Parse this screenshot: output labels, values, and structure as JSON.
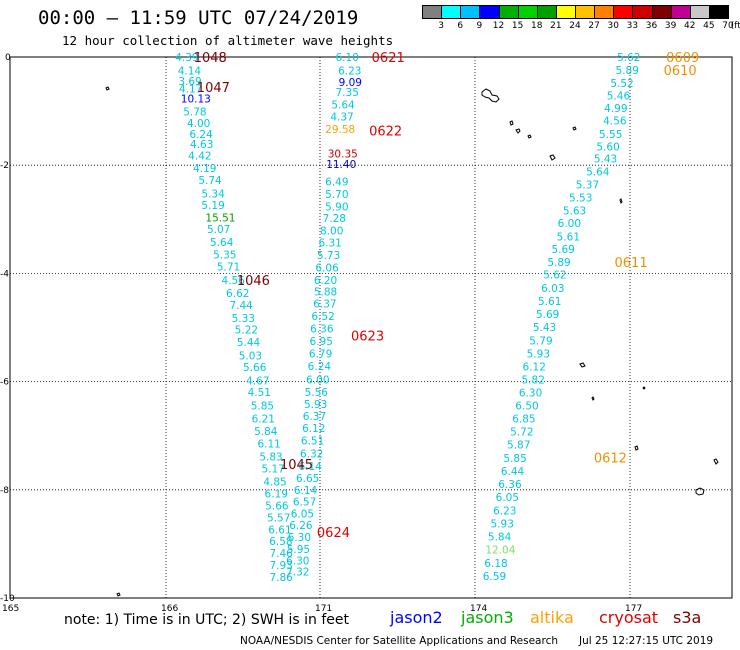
{
  "header": {
    "title": "00:00 — 11:59 UTC 07/24/2019",
    "subtitle": "12 hour collection of altimeter wave heights"
  },
  "colorbar": {
    "colors": [
      "#808080",
      "#00ffff",
      "#00bfff",
      "#0000ff",
      "#00b000",
      "#00d200",
      "#00a000",
      "#ffff00",
      "#ffc000",
      "#ff8000",
      "#ff0000",
      "#d00000",
      "#800000",
      "#c0008f",
      "#c8c8c8",
      "#000000"
    ],
    "labels": [
      "3",
      "6",
      "9",
      "12",
      "15",
      "18",
      "21",
      "24",
      "27",
      "30",
      "33",
      "36",
      "39",
      "42",
      "45",
      "70",
      "(ft)"
    ]
  },
  "map": {
    "x_ticks": [
      "165",
      "166",
      "171",
      "174",
      "177"
    ],
    "y_ticks": [
      "0",
      "-2",
      "-4",
      "-6",
      "-8",
      "-10"
    ]
  },
  "chart_data": {
    "type": "scatter",
    "x_unit": "longitude",
    "y_unit": "latitude",
    "tracks": [
      {
        "name": "track-A",
        "satellite": "jason2",
        "color": "#00c8e0",
        "points": [
          {
            "lon": 166.3,
            "lat": 0.0,
            "v": "4.39"
          },
          {
            "lon": 166.38,
            "lat": -0.25,
            "v": "4.14"
          },
          {
            "lon": 166.4,
            "lat": -0.44,
            "v": "3.69"
          },
          {
            "lon": 166.42,
            "lat": -0.58,
            "v": "4.17"
          },
          {
            "lon": 166.48,
            "lat": -0.77,
            "v": "10.13",
            "color": "#0000ff"
          },
          {
            "lon": 166.56,
            "lat": -1.01,
            "v": "5.78"
          },
          {
            "lon": 166.68,
            "lat": -1.22,
            "v": "4.00"
          },
          {
            "lon": 166.76,
            "lat": -1.42,
            "v": "6.24"
          },
          {
            "lon": 166.78,
            "lat": -1.61,
            "v": "4.63"
          },
          {
            "lon": 166.72,
            "lat": -1.82,
            "v": "4.42"
          },
          {
            "lon": 166.88,
            "lat": -2.05,
            "v": "4.19"
          },
          {
            "lon": 167.05,
            "lat": -2.27,
            "v": "5.74"
          },
          {
            "lon": 167.15,
            "lat": -2.52,
            "v": "5.34"
          },
          {
            "lon": 167.15,
            "lat": -2.74,
            "v": "5.19"
          },
          {
            "lon": 167.28,
            "lat": -2.97,
            "v": "15.51",
            "color": "#00a000"
          },
          {
            "lon": 167.33,
            "lat": -3.18,
            "v": "5.07"
          },
          {
            "lon": 167.43,
            "lat": -3.42,
            "v": "5.64"
          },
          {
            "lon": 167.53,
            "lat": -3.65,
            "v": "5.35"
          },
          {
            "lon": 167.65,
            "lat": -3.87,
            "v": "5.71"
          },
          {
            "lon": 167.8,
            "lat": -4.12,
            "v": "4.56"
          },
          {
            "lon": 167.95,
            "lat": -4.36,
            "v": "6.62"
          },
          {
            "lon": 168.06,
            "lat": -4.58,
            "v": "7.44"
          },
          {
            "lon": 168.13,
            "lat": -4.82,
            "v": "5.33"
          },
          {
            "lon": 168.23,
            "lat": -5.04,
            "v": "5.22"
          },
          {
            "lon": 168.3,
            "lat": -5.27,
            "v": "5.44"
          },
          {
            "lon": 168.36,
            "lat": -5.52,
            "v": "5.03"
          },
          {
            "lon": 168.5,
            "lat": -5.73,
            "v": "5.66"
          },
          {
            "lon": 168.6,
            "lat": -5.98,
            "v": "4.67"
          },
          {
            "lon": 168.65,
            "lat": -6.19,
            "v": "4.51"
          },
          {
            "lon": 168.75,
            "lat": -6.44,
            "v": "5.85"
          },
          {
            "lon": 168.78,
            "lat": -6.68,
            "v": "6.21"
          },
          {
            "lon": 168.86,
            "lat": -6.91,
            "v": "5.84"
          },
          {
            "lon": 168.97,
            "lat": -7.14,
            "v": "6.11"
          },
          {
            "lon": 169.03,
            "lat": -7.38,
            "v": "5.83"
          },
          {
            "lon": 169.1,
            "lat": -7.61,
            "v": "5.17"
          },
          {
            "lon": 169.16,
            "lat": -7.85,
            "v": "4.85"
          },
          {
            "lon": 169.2,
            "lat": -8.07,
            "v": "6.19"
          },
          {
            "lon": 169.22,
            "lat": -8.29,
            "v": "5.66"
          },
          {
            "lon": 169.28,
            "lat": -8.51,
            "v": "5.57"
          },
          {
            "lon": 169.32,
            "lat": -8.73,
            "v": "6.61"
          },
          {
            "lon": 169.35,
            "lat": -8.95,
            "v": "6.58"
          },
          {
            "lon": 169.36,
            "lat": -9.17,
            "v": "7.46"
          },
          {
            "lon": 169.36,
            "lat": -9.39,
            "v": "7.93"
          },
          {
            "lon": 169.36,
            "lat": -9.61,
            "v": "7.86"
          }
        ]
      },
      {
        "name": "track-B",
        "satellite": "jason2",
        "color": "#00c8e0",
        "points": [
          {
            "lon": 171.3,
            "lat": 0.0,
            "v": "6.10"
          },
          {
            "lon": 171.35,
            "lat": -0.25,
            "v": "6.23"
          },
          {
            "lon": 171.36,
            "lat": -0.46,
            "v": "9.09",
            "color": "#0000ff"
          },
          {
            "lon": 171.3,
            "lat": -0.65,
            "v": "7.35"
          },
          {
            "lon": 171.22,
            "lat": -0.88,
            "v": "5.64"
          },
          {
            "lon": 171.2,
            "lat": -1.1,
            "v": "4.37"
          },
          {
            "lon": 171.1,
            "lat": -1.33,
            "v": "29.58",
            "color": "#ffa000"
          },
          {
            "lon": 171.15,
            "lat": -1.78,
            "v": "30.35",
            "color": "#d00000"
          },
          {
            "lon": 171.12,
            "lat": -1.98,
            "v": "11.40",
            "color": "#0000cc"
          },
          {
            "lon": 171.1,
            "lat": -2.3,
            "v": "6.49"
          },
          {
            "lon": 171.1,
            "lat": -2.53,
            "v": "5.70"
          },
          {
            "lon": 171.1,
            "lat": -2.76,
            "v": "5.90"
          },
          {
            "lon": 171.05,
            "lat": -2.98,
            "v": "7.28"
          },
          {
            "lon": 171.0,
            "lat": -3.21,
            "v": "8.00"
          },
          {
            "lon": 170.95,
            "lat": -3.43,
            "v": "6.31"
          },
          {
            "lon": 170.9,
            "lat": -3.66,
            "v": "5.73"
          },
          {
            "lon": 170.85,
            "lat": -3.89,
            "v": "6.06"
          },
          {
            "lon": 170.8,
            "lat": -4.12,
            "v": "6.20"
          },
          {
            "lon": 170.8,
            "lat": -4.33,
            "v": "5.88"
          },
          {
            "lon": 170.78,
            "lat": -4.56,
            "v": "6.37"
          },
          {
            "lon": 170.72,
            "lat": -4.79,
            "v": "6.52"
          },
          {
            "lon": 170.68,
            "lat": -5.02,
            "v": "6.36"
          },
          {
            "lon": 170.66,
            "lat": -5.25,
            "v": "6.95"
          },
          {
            "lon": 170.64,
            "lat": -5.48,
            "v": "6.79"
          },
          {
            "lon": 170.6,
            "lat": -5.71,
            "v": "6.24"
          },
          {
            "lon": 170.55,
            "lat": -5.96,
            "v": "6.00"
          },
          {
            "lon": 170.5,
            "lat": -6.19,
            "v": "5.56"
          },
          {
            "lon": 170.48,
            "lat": -6.41,
            "v": "5.93"
          },
          {
            "lon": 170.44,
            "lat": -6.64,
            "v": "6.37"
          },
          {
            "lon": 170.42,
            "lat": -6.86,
            "v": "6.12"
          },
          {
            "lon": 170.38,
            "lat": -7.09,
            "v": "6.51"
          },
          {
            "lon": 170.35,
            "lat": -7.33,
            "v": "6.32"
          },
          {
            "lon": 170.3,
            "lat": -7.56,
            "v": "6.14"
          },
          {
            "lon": 170.22,
            "lat": -7.78,
            "v": "6.65"
          },
          {
            "lon": 170.15,
            "lat": -8.0,
            "v": "6.14"
          },
          {
            "lon": 170.12,
            "lat": -8.22,
            "v": "6.57"
          },
          {
            "lon": 170.05,
            "lat": -8.44,
            "v": "6.05"
          },
          {
            "lon": 170.0,
            "lat": -8.65,
            "v": "6.26"
          },
          {
            "lon": 169.95,
            "lat": -8.87,
            "v": "6.30"
          },
          {
            "lon": 169.92,
            "lat": -9.09,
            "v": "5.95"
          },
          {
            "lon": 169.9,
            "lat": -9.31,
            "v": "6.30"
          },
          {
            "lon": 169.9,
            "lat": -9.51,
            "v": "7.32"
          }
        ]
      },
      {
        "name": "track-C",
        "satellite": "jason2",
        "color": "#00c8e0",
        "points": [
          {
            "lon": 176.75,
            "lat": 0.0,
            "v": "5.62"
          },
          {
            "lon": 176.72,
            "lat": -0.24,
            "v": "5.89"
          },
          {
            "lon": 176.62,
            "lat": -0.48,
            "v": "5.52"
          },
          {
            "lon": 176.55,
            "lat": -0.71,
            "v": "5.46"
          },
          {
            "lon": 176.5,
            "lat": -0.94,
            "v": "4.99"
          },
          {
            "lon": 176.48,
            "lat": -1.17,
            "v": "4.56"
          },
          {
            "lon": 176.4,
            "lat": -1.42,
            "v": "5.55"
          },
          {
            "lon": 176.35,
            "lat": -1.65,
            "v": "5.60"
          },
          {
            "lon": 176.3,
            "lat": -1.88,
            "v": "5.43"
          },
          {
            "lon": 176.15,
            "lat": -2.12,
            "v": "5.64"
          },
          {
            "lon": 175.95,
            "lat": -2.36,
            "v": "5.37"
          },
          {
            "lon": 175.82,
            "lat": -2.6,
            "v": "5.53"
          },
          {
            "lon": 175.7,
            "lat": -2.84,
            "v": "5.63"
          },
          {
            "lon": 175.6,
            "lat": -3.07,
            "v": "6.00"
          },
          {
            "lon": 175.58,
            "lat": -3.32,
            "v": "5.61"
          },
          {
            "lon": 175.48,
            "lat": -3.55,
            "v": "5.69"
          },
          {
            "lon": 175.4,
            "lat": -3.79,
            "v": "5.89"
          },
          {
            "lon": 175.32,
            "lat": -4.02,
            "v": "5.62"
          },
          {
            "lon": 175.28,
            "lat": -4.27,
            "v": "6.03"
          },
          {
            "lon": 175.22,
            "lat": -4.51,
            "v": "5.61"
          },
          {
            "lon": 175.18,
            "lat": -4.75,
            "v": "5.69"
          },
          {
            "lon": 175.12,
            "lat": -4.99,
            "v": "5.43"
          },
          {
            "lon": 175.05,
            "lat": -5.24,
            "v": "5.79"
          },
          {
            "lon": 175.0,
            "lat": -5.48,
            "v": "5.93"
          },
          {
            "lon": 174.92,
            "lat": -5.72,
            "v": "6.12"
          },
          {
            "lon": 174.9,
            "lat": -5.96,
            "v": "5.82"
          },
          {
            "lon": 174.85,
            "lat": -6.2,
            "v": "6.30"
          },
          {
            "lon": 174.78,
            "lat": -6.44,
            "v": "6.50"
          },
          {
            "lon": 174.72,
            "lat": -6.68,
            "v": "6.85"
          },
          {
            "lon": 174.68,
            "lat": -6.92,
            "v": "5.72"
          },
          {
            "lon": 174.62,
            "lat": -7.16,
            "v": "5.87"
          },
          {
            "lon": 174.55,
            "lat": -7.41,
            "v": "5.85"
          },
          {
            "lon": 174.5,
            "lat": -7.65,
            "v": "6.44"
          },
          {
            "lon": 174.45,
            "lat": -7.89,
            "v": "6.36"
          },
          {
            "lon": 174.4,
            "lat": -8.13,
            "v": "6.05"
          },
          {
            "lon": 174.35,
            "lat": -8.38,
            "v": "6.23"
          },
          {
            "lon": 174.3,
            "lat": -8.62,
            "v": "5.93"
          },
          {
            "lon": 174.25,
            "lat": -8.86,
            "v": "5.84"
          },
          {
            "lon": 174.2,
            "lat": -9.1,
            "v": "12.04",
            "color": "#80e060"
          },
          {
            "lon": 174.18,
            "lat": -9.35,
            "v": "6.18"
          },
          {
            "lon": 174.15,
            "lat": -9.59,
            "v": "6.59"
          }
        ]
      }
    ],
    "time_labels": [
      {
        "lon": 166.9,
        "lat": 0.0,
        "v": "1048",
        "color": "#800000"
      },
      {
        "lon": 167.0,
        "lat": -0.55,
        "v": "1047",
        "color": "#800000"
      },
      {
        "lon": 168.3,
        "lat": -4.12,
        "v": "1046",
        "color": "#800000"
      },
      {
        "lon": 169.7,
        "lat": -7.52,
        "v": "1045",
        "color": "#800000"
      },
      {
        "lon": 172.0,
        "lat": 0.0,
        "v": "0621",
        "color": "#e00000"
      },
      {
        "lon": 171.95,
        "lat": -1.36,
        "v": "0622",
        "color": "#e00000"
      },
      {
        "lon": 171.6,
        "lat": -5.15,
        "v": "0623",
        "color": "#e00000"
      },
      {
        "lon": 170.9,
        "lat": -8.78,
        "v": "0624",
        "color": "#e00000"
      },
      {
        "lon": 177.7,
        "lat": 0.0,
        "v": "0609",
        "color": "#f09000"
      },
      {
        "lon": 177.65,
        "lat": -0.24,
        "v": "0610",
        "color": "#f09000"
      },
      {
        "lon": 176.7,
        "lat": -3.79,
        "v": "0611",
        "color": "#f09000"
      },
      {
        "lon": 176.3,
        "lat": -7.4,
        "v": "0612",
        "color": "#f09000"
      }
    ]
  },
  "footer": {
    "note": "note: 1) Time is in UTC; 2) SWH is in feet",
    "satellites": [
      {
        "name": "jason2",
        "color": "#0000ff"
      },
      {
        "name": "jason3",
        "color": "#00b000"
      },
      {
        "name": "altika",
        "color": "#ffa000"
      },
      {
        "name": "cryosat",
        "color": "#e00000"
      },
      {
        "name": "s3a",
        "color": "#800000"
      }
    ],
    "credit": "NOAA/NESDIS Center for Satellite Applications and Research",
    "timestamp": "Jul 25 12:27:15 UTC 2019"
  }
}
